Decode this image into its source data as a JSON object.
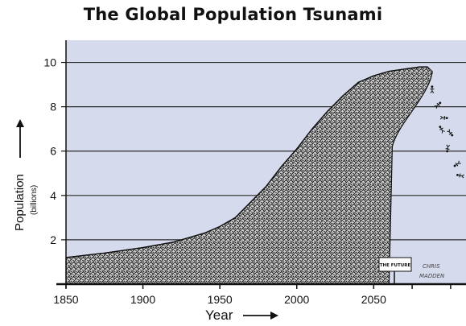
{
  "chart_data": {
    "type": "area",
    "title": "The Global Population Tsunami",
    "xlabel": "Year",
    "ylabel": "Population",
    "ylabel_unit": "(billions)",
    "xlim": [
      1850,
      2110
    ],
    "ylim": [
      0,
      11
    ],
    "x_ticks": [
      1850,
      1900,
      1950,
      2000,
      2050
    ],
    "y_ticks": [
      2,
      4,
      6,
      8,
      10
    ],
    "grid": "horizontal",
    "series": [
      {
        "x": [
          1850,
          1875,
          1900,
          1920,
          1930,
          1940,
          1950,
          1960,
          1970,
          1980,
          1990,
          2000,
          2010,
          2020,
          2030,
          2040,
          2050,
          2060,
          2070,
          2080,
          2085
        ],
        "values": [
          1.2,
          1.4,
          1.65,
          1.9,
          2.1,
          2.3,
          2.6,
          3.0,
          3.7,
          4.4,
          5.3,
          6.1,
          7.0,
          7.8,
          8.5,
          9.1,
          9.4,
          9.6,
          9.7,
          9.8,
          9.8
        ]
      }
    ],
    "annotations": [
      {
        "text": "THE FUTURE",
        "x": 2055,
        "y": 0.9
      },
      {
        "text": "CHRIS",
        "x": 2075,
        "y": 0.8
      },
      {
        "text": "MADDEN",
        "x": 2077,
        "y": 0.4
      }
    ]
  }
}
